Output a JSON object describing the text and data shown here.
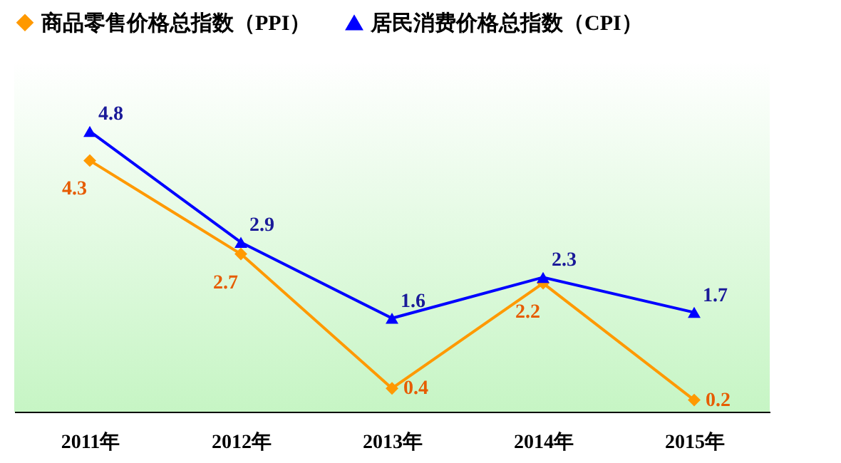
{
  "chart_data": {
    "type": "line",
    "categories": [
      "2011年",
      "2012年",
      "2013年",
      "2014年",
      "2015年"
    ],
    "series": [
      {
        "name": "商品零售价格总指数（PPI）",
        "color": "#ff9900",
        "marker": "diamond",
        "values": [
          4.3,
          2.7,
          0.4,
          2.2,
          0.2
        ]
      },
      {
        "name": "居民消费价格总指数（CPI）",
        "color": "#0000ff",
        "marker": "triangle",
        "values": [
          4.8,
          2.9,
          1.6,
          2.3,
          1.7
        ]
      }
    ],
    "ylim": [
      0,
      6
    ],
    "tick_labels": "x",
    "data_labels": true,
    "legend": "top"
  }
}
